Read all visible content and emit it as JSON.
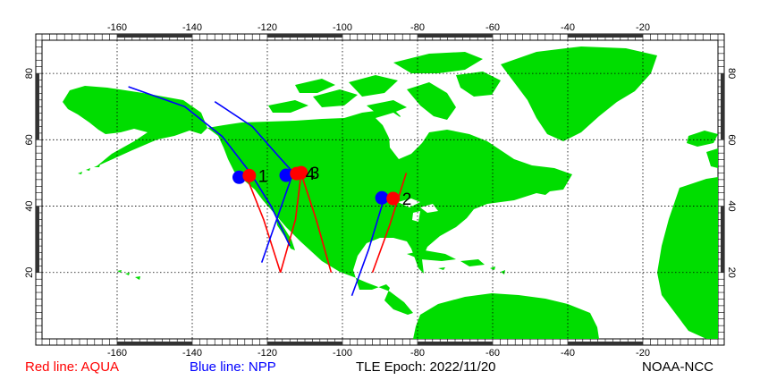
{
  "map": {
    "lon_range": [
      -180,
      0
    ],
    "lat_range": [
      0,
      90
    ],
    "lon_ticks": [
      "-160",
      "-140",
      "-120",
      "-100",
      "-80",
      "-60",
      "-40",
      "-20"
    ],
    "lon_tick_values": [
      -160,
      -140,
      -120,
      -100,
      -80,
      -60,
      -40,
      -20
    ],
    "lat_ticks": [
      "20",
      "40",
      "60",
      "80"
    ],
    "lat_tick_values": [
      20,
      40,
      60,
      80
    ],
    "colors": {
      "land": "#00dd00",
      "ocean": "#ffffff",
      "aqua": "#ff0000",
      "npp": "#0000ff",
      "grid": "#000000"
    }
  },
  "tracks": [
    {
      "satellite": "AQUA",
      "color": "#ff0000",
      "points": [
        [
          -125.5,
          48.8
        ],
        [
          -121,
          36
        ],
        [
          -116.5,
          20
        ]
      ]
    },
    {
      "satellite": "AQUA",
      "color": "#ff0000",
      "points": [
        [
          -111,
          49.8
        ],
        [
          -112.5,
          36
        ],
        [
          -116.5,
          20
        ]
      ]
    },
    {
      "satellite": "AQUA",
      "color": "#ff0000",
      "points": [
        [
          -111,
          49.8
        ],
        [
          -107,
          36
        ],
        [
          -103,
          20
        ]
      ]
    },
    {
      "satellite": "AQUA",
      "color": "#ff0000",
      "points": [
        [
          -92,
          20
        ],
        [
          -87.5,
          34
        ],
        [
          -83,
          50
        ]
      ]
    },
    {
      "satellite": "NPP",
      "color": "#0000ff",
      "points": [
        [
          -157,
          76
        ],
        [
          -142,
          70
        ],
        [
          -132,
          61
        ],
        [
          -124.5,
          50
        ],
        [
          -119,
          40
        ],
        [
          -114,
          28
        ]
      ]
    },
    {
      "satellite": "NPP",
      "color": "#0000ff",
      "points": [
        [
          -134,
          71.5
        ],
        [
          -124,
          64
        ],
        [
          -117,
          55
        ],
        [
          -113,
          50
        ]
      ]
    },
    {
      "satellite": "NPP",
      "color": "#0000ff",
      "points": [
        [
          -113,
          50.5
        ],
        [
          -117.5,
          36
        ],
        [
          -121.5,
          23
        ]
      ]
    },
    {
      "satellite": "NPP",
      "color": "#0000ff",
      "points": [
        [
          -89,
          42
        ],
        [
          -93,
          27
        ],
        [
          -97.5,
          13
        ]
      ]
    }
  ],
  "markers": [
    {
      "label": "1",
      "npp": [
        -127.5,
        48.7
      ],
      "aqua": [
        -124.8,
        49.2
      ]
    },
    {
      "label": "2",
      "npp": [
        -89.5,
        42.5
      ],
      "aqua": [
        -86.5,
        42.3
      ]
    },
    {
      "label": "3",
      "npp": null,
      "aqua": [
        -111,
        50.1
      ]
    },
    {
      "label": "4",
      "npp": [
        -115,
        49.3
      ],
      "aqua": [
        -112.2,
        49.8
      ]
    }
  ],
  "footer": {
    "aqua_legend": "Red line: AQUA",
    "npp_legend": "Blue line: NPP",
    "tle_epoch": "TLE Epoch: 2022/11/20",
    "credit": "NOAA-NCC"
  }
}
